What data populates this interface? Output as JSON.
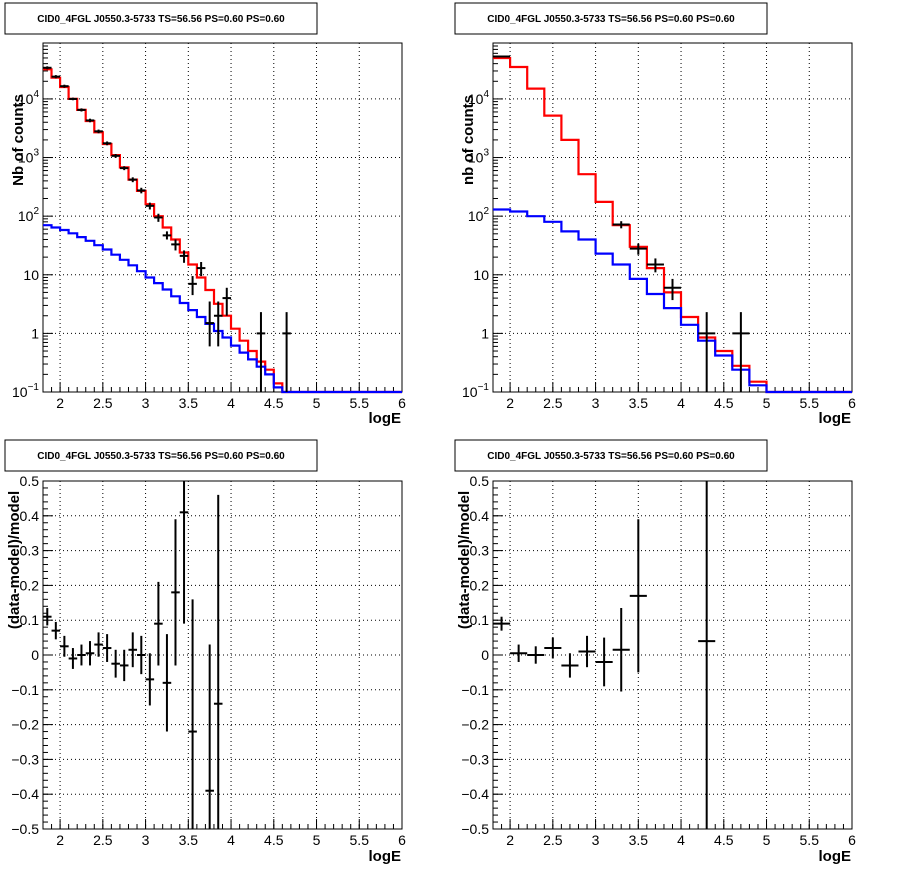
{
  "chart_data": [
    {
      "type": "line",
      "title": "CID0_4FGL J0550.3-5733 TS=56.56 PS=0.60 PS=0.60",
      "xlabel": "logE",
      "ylabel": "Nb of counts",
      "xlim": [
        1.8,
        6.0
      ],
      "ylim": [
        0.1,
        90000
      ],
      "yscale": "log",
      "grid": true,
      "xticks": [
        "2",
        "2.5",
        "3",
        "3.5",
        "4",
        "4.5",
        "5",
        "5.5",
        "6"
      ],
      "yticks": [
        {
          "v": 0.1,
          "label": "10",
          "sup": "−1"
        },
        {
          "v": 1,
          "label": "1",
          "sup": ""
        },
        {
          "v": 10,
          "label": "10",
          "sup": ""
        },
        {
          "v": 100,
          "label": "10",
          "sup": "2"
        },
        {
          "v": 1000,
          "label": "10",
          "sup": "3"
        },
        {
          "v": 10000,
          "label": "10",
          "sup": "4"
        }
      ],
      "bin_edges": [
        1.8,
        1.9,
        2.0,
        2.1,
        2.2,
        2.3,
        2.4,
        2.5,
        2.6,
        2.7,
        2.8,
        2.9,
        3.0,
        3.1,
        3.2,
        3.3,
        3.4,
        3.5,
        3.6,
        3.7,
        3.8,
        3.9,
        4.0,
        4.1,
        4.2,
        4.3,
        4.4,
        4.5,
        4.6,
        4.7,
        4.8,
        4.9,
        5.0,
        5.1,
        5.2,
        5.3,
        5.4,
        5.5,
        5.6,
        5.7,
        5.8,
        5.9,
        6.0
      ],
      "series": [
        {
          "kind": "model",
          "color": "#ff0000",
          "values": [
            32000,
            23000,
            16000,
            10000,
            6500,
            4200,
            2700,
            1700,
            1100,
            680,
            420,
            270,
            160,
            100,
            64,
            40,
            24,
            15,
            9,
            5.5,
            3.2,
            2.0,
            1.2,
            0.75,
            0.5,
            0.33,
            0.24,
            0.14,
            0.1,
            0.1,
            0.1,
            0.1,
            0.1,
            0.1,
            0.1,
            0.1,
            0.1,
            0.1,
            0.1,
            0.1,
            0.1,
            0.1
          ]
        },
        {
          "kind": "model",
          "color": "#0000ff",
          "values": [
            70,
            64,
            58,
            51,
            44,
            38,
            32,
            27,
            22,
            18,
            14.5,
            11.5,
            9,
            7.2,
            5.6,
            4.3,
            3.3,
            2.5,
            1.9,
            1.45,
            1.1,
            0.85,
            0.62,
            0.47,
            0.36,
            0.27,
            0.2,
            0.12,
            0.1,
            0.1,
            0.1,
            0.1,
            0.1,
            0.1,
            0.1,
            0.1,
            0.1,
            0.1,
            0.1,
            0.1,
            0.1,
            0.1
          ]
        },
        {
          "kind": "data",
          "color": "#000000",
          "points": [
            {
              "x": 1.85,
              "y": 34000,
              "lo": 32000,
              "hi": 36000
            },
            {
              "x": 1.95,
              "y": 24000,
              "lo": 22500,
              "hi": 25500
            },
            {
              "x": 2.05,
              "y": 16500,
              "lo": 15500,
              "hi": 17500
            },
            {
              "x": 2.15,
              "y": 10000,
              "lo": 9500,
              "hi": 10500
            },
            {
              "x": 2.25,
              "y": 6500,
              "lo": 6100,
              "hi": 6900
            },
            {
              "x": 2.35,
              "y": 4300,
              "lo": 4000,
              "hi": 4600
            },
            {
              "x": 2.45,
              "y": 2800,
              "lo": 2600,
              "hi": 3000
            },
            {
              "x": 2.55,
              "y": 1750,
              "lo": 1620,
              "hi": 1880
            },
            {
              "x": 2.65,
              "y": 1070,
              "lo": 990,
              "hi": 1150
            },
            {
              "x": 2.75,
              "y": 660,
              "lo": 610,
              "hi": 710
            },
            {
              "x": 2.85,
              "y": 420,
              "lo": 380,
              "hi": 460
            },
            {
              "x": 2.95,
              "y": 275,
              "lo": 245,
              "hi": 305
            },
            {
              "x": 3.05,
              "y": 150,
              "lo": 130,
              "hi": 170
            },
            {
              "x": 3.15,
              "y": 95,
              "lo": 80,
              "hi": 110
            },
            {
              "x": 3.25,
              "y": 47,
              "lo": 40,
              "hi": 55
            },
            {
              "x": 3.35,
              "y": 33,
              "lo": 26,
              "hi": 40
            },
            {
              "x": 3.45,
              "y": 21,
              "lo": 16,
              "hi": 26
            },
            {
              "x": 3.55,
              "y": 7,
              "lo": 4.5,
              "hi": 9.5
            },
            {
              "x": 3.65,
              "y": 13,
              "lo": 9.5,
              "hi": 16.5
            },
            {
              "x": 3.75,
              "y": 1.5,
              "lo": 0.6,
              "hi": 3.5
            },
            {
              "x": 3.85,
              "y": 2,
              "lo": 0.6,
              "hi": 3.5
            },
            {
              "x": 3.95,
              "y": 4,
              "lo": 2,
              "hi": 6
            },
            {
              "x": 4.35,
              "y": 1,
              "lo": 0.1,
              "hi": 2.3
            },
            {
              "x": 4.65,
              "y": 1,
              "lo": 0.1,
              "hi": 2.3
            }
          ]
        }
      ]
    },
    {
      "type": "line",
      "title": "CID0_4FGL J0550.3-5733 TS=56.56 PS=0.60 PS=0.60",
      "xlabel": "logE",
      "ylabel": "nb of counts",
      "xlim": [
        1.8,
        6.0
      ],
      "ylim": [
        0.1,
        90000
      ],
      "yscale": "log",
      "grid": true,
      "xticks": [
        "2",
        "2.5",
        "3",
        "3.5",
        "4",
        "4.5",
        "5",
        "5.5",
        "6"
      ],
      "yticks": [
        {
          "v": 0.1,
          "label": "10",
          "sup": "−1"
        },
        {
          "v": 1,
          "label": "1",
          "sup": ""
        },
        {
          "v": 10,
          "label": "10",
          "sup": ""
        },
        {
          "v": 100,
          "label": "10",
          "sup": "2"
        },
        {
          "v": 1000,
          "label": "10",
          "sup": "3"
        },
        {
          "v": 10000,
          "label": "10",
          "sup": "4"
        }
      ],
      "bin_edges": [
        1.8,
        2.0,
        2.2,
        2.4,
        2.6,
        2.8,
        3.0,
        3.2,
        3.4,
        3.6,
        3.8,
        4.0,
        4.2,
        4.4,
        4.6,
        4.8,
        5.0,
        5.2,
        5.4,
        5.6,
        5.8,
        6.0
      ],
      "series": [
        {
          "kind": "model",
          "color": "#ff0000",
          "values": [
            50000,
            35000,
            15000,
            5200,
            2000,
            520,
            175,
            70,
            30,
            13,
            5,
            1.9,
            0.85,
            0.5,
            0.28,
            0.15,
            0.1,
            0.1,
            0.1,
            0.1,
            0.1
          ]
        },
        {
          "kind": "model",
          "color": "#0000ff",
          "values": [
            130,
            120,
            100,
            80,
            55,
            40,
            23,
            15,
            8.5,
            4.7,
            2.7,
            1.4,
            0.75,
            0.42,
            0.24,
            0.13,
            0.1,
            0.1,
            0.1,
            0.1,
            0.1
          ]
        },
        {
          "kind": "data",
          "color": "#000000",
          "points": [
            {
              "x": 1.9,
              "y": 53000,
              "lo": 51000,
              "hi": 55000
            },
            {
              "x": 3.3,
              "y": 72,
              "lo": 62,
              "hi": 82
            },
            {
              "x": 3.5,
              "y": 28,
              "lo": 22,
              "hi": 34
            },
            {
              "x": 3.7,
              "y": 15,
              "lo": 11,
              "hi": 19
            },
            {
              "x": 3.9,
              "y": 6,
              "lo": 3.7,
              "hi": 8.5
            },
            {
              "x": 4.3,
              "y": 1,
              "lo": 0.1,
              "hi": 2.3
            },
            {
              "x": 4.7,
              "y": 1,
              "lo": 0.1,
              "hi": 2.3
            }
          ]
        }
      ]
    },
    {
      "type": "scatter",
      "title": "CID0_4FGL J0550.3-5733 TS=56.56 PS=0.60 PS=0.60",
      "xlabel": "logE",
      "ylabel": "(data-model)/model",
      "xlim": [
        1.8,
        6.0
      ],
      "ylim": [
        -0.5,
        0.5
      ],
      "grid": true,
      "xticks": [
        "2",
        "2.5",
        "3",
        "3.5",
        "4",
        "4.5",
        "5",
        "5.5",
        "6"
      ],
      "yticks": [
        "−0.5",
        "−0.4",
        "−0.3",
        "−0.2",
        "−0.1",
        "0",
        "0.1",
        "0.2",
        "0.3",
        "0.4",
        "0.5"
      ],
      "points": [
        {
          "x": 1.85,
          "y": 0.11,
          "err": 0.025,
          "xerr": 0.05
        },
        {
          "x": 1.95,
          "y": 0.07,
          "err": 0.025,
          "xerr": 0.05
        },
        {
          "x": 2.05,
          "y": 0.025,
          "err": 0.03,
          "xerr": 0.05
        },
        {
          "x": 2.15,
          "y": -0.01,
          "err": 0.03,
          "xerr": 0.05
        },
        {
          "x": 2.25,
          "y": 0.0,
          "err": 0.03,
          "xerr": 0.05
        },
        {
          "x": 2.35,
          "y": 0.005,
          "err": 0.035,
          "xerr": 0.05
        },
        {
          "x": 2.45,
          "y": 0.03,
          "err": 0.035,
          "xerr": 0.05
        },
        {
          "x": 2.55,
          "y": 0.02,
          "err": 0.04,
          "xerr": 0.05
        },
        {
          "x": 2.65,
          "y": -0.025,
          "err": 0.04,
          "xerr": 0.05
        },
        {
          "x": 2.75,
          "y": -0.03,
          "err": 0.045,
          "xerr": 0.05
        },
        {
          "x": 2.85,
          "y": 0.015,
          "err": 0.05,
          "xerr": 0.05
        },
        {
          "x": 2.95,
          "y": 0.0,
          "err": 0.055,
          "xerr": 0.05
        },
        {
          "x": 3.05,
          "y": -0.07,
          "err": 0.075,
          "xerr": 0.05
        },
        {
          "x": 3.15,
          "y": 0.09,
          "err": 0.12,
          "xerr": 0.05
        },
        {
          "x": 3.25,
          "y": -0.08,
          "err": 0.14,
          "xerr": 0.05
        },
        {
          "x": 3.35,
          "y": 0.18,
          "err": 0.21,
          "xerr": 0.05
        },
        {
          "x": 3.45,
          "y": 0.41,
          "err": 0.32,
          "xerr": 0.05
        },
        {
          "x": 3.55,
          "y": -0.22,
          "err": 0.38,
          "xerr": 0.05
        },
        {
          "x": 3.75,
          "y": -0.39,
          "err": 0.42,
          "xerr": 0.05
        },
        {
          "x": 3.85,
          "y": -0.14,
          "err": 0.6,
          "xerr": 0.05
        }
      ]
    },
    {
      "type": "scatter",
      "title": "CID0_4FGL J0550.3-5733 TS=56.56 PS=0.60 PS=0.60",
      "xlabel": "logE",
      "ylabel": "(data-model)/model",
      "xlim": [
        1.8,
        6.0
      ],
      "ylim": [
        -0.5,
        0.5
      ],
      "grid": true,
      "xticks": [
        "2",
        "2.5",
        "3",
        "3.5",
        "4",
        "4.5",
        "5",
        "5.5",
        "6"
      ],
      "yticks": [
        "−0.5",
        "−0.4",
        "−0.3",
        "−0.2",
        "−0.1",
        "0",
        "0.1",
        "0.2",
        "0.3",
        "0.4",
        "0.5"
      ],
      "points": [
        {
          "x": 1.9,
          "y": 0.09,
          "err": 0.02,
          "xerr": 0.1
        },
        {
          "x": 2.1,
          "y": 0.005,
          "err": 0.025,
          "xerr": 0.1
        },
        {
          "x": 2.3,
          "y": 0.0,
          "err": 0.025,
          "xerr": 0.1
        },
        {
          "x": 2.5,
          "y": 0.02,
          "err": 0.03,
          "xerr": 0.1
        },
        {
          "x": 2.7,
          "y": -0.03,
          "err": 0.035,
          "xerr": 0.1
        },
        {
          "x": 2.9,
          "y": 0.01,
          "err": 0.045,
          "xerr": 0.1
        },
        {
          "x": 3.1,
          "y": -0.02,
          "err": 0.07,
          "xerr": 0.1
        },
        {
          "x": 3.3,
          "y": 0.015,
          "err": 0.12,
          "xerr": 0.1
        },
        {
          "x": 3.5,
          "y": 0.17,
          "err": 0.22,
          "xerr": 0.1
        },
        {
          "x": 4.3,
          "y": 0.04,
          "err": 0.9,
          "xerr": 0.1
        }
      ]
    }
  ]
}
